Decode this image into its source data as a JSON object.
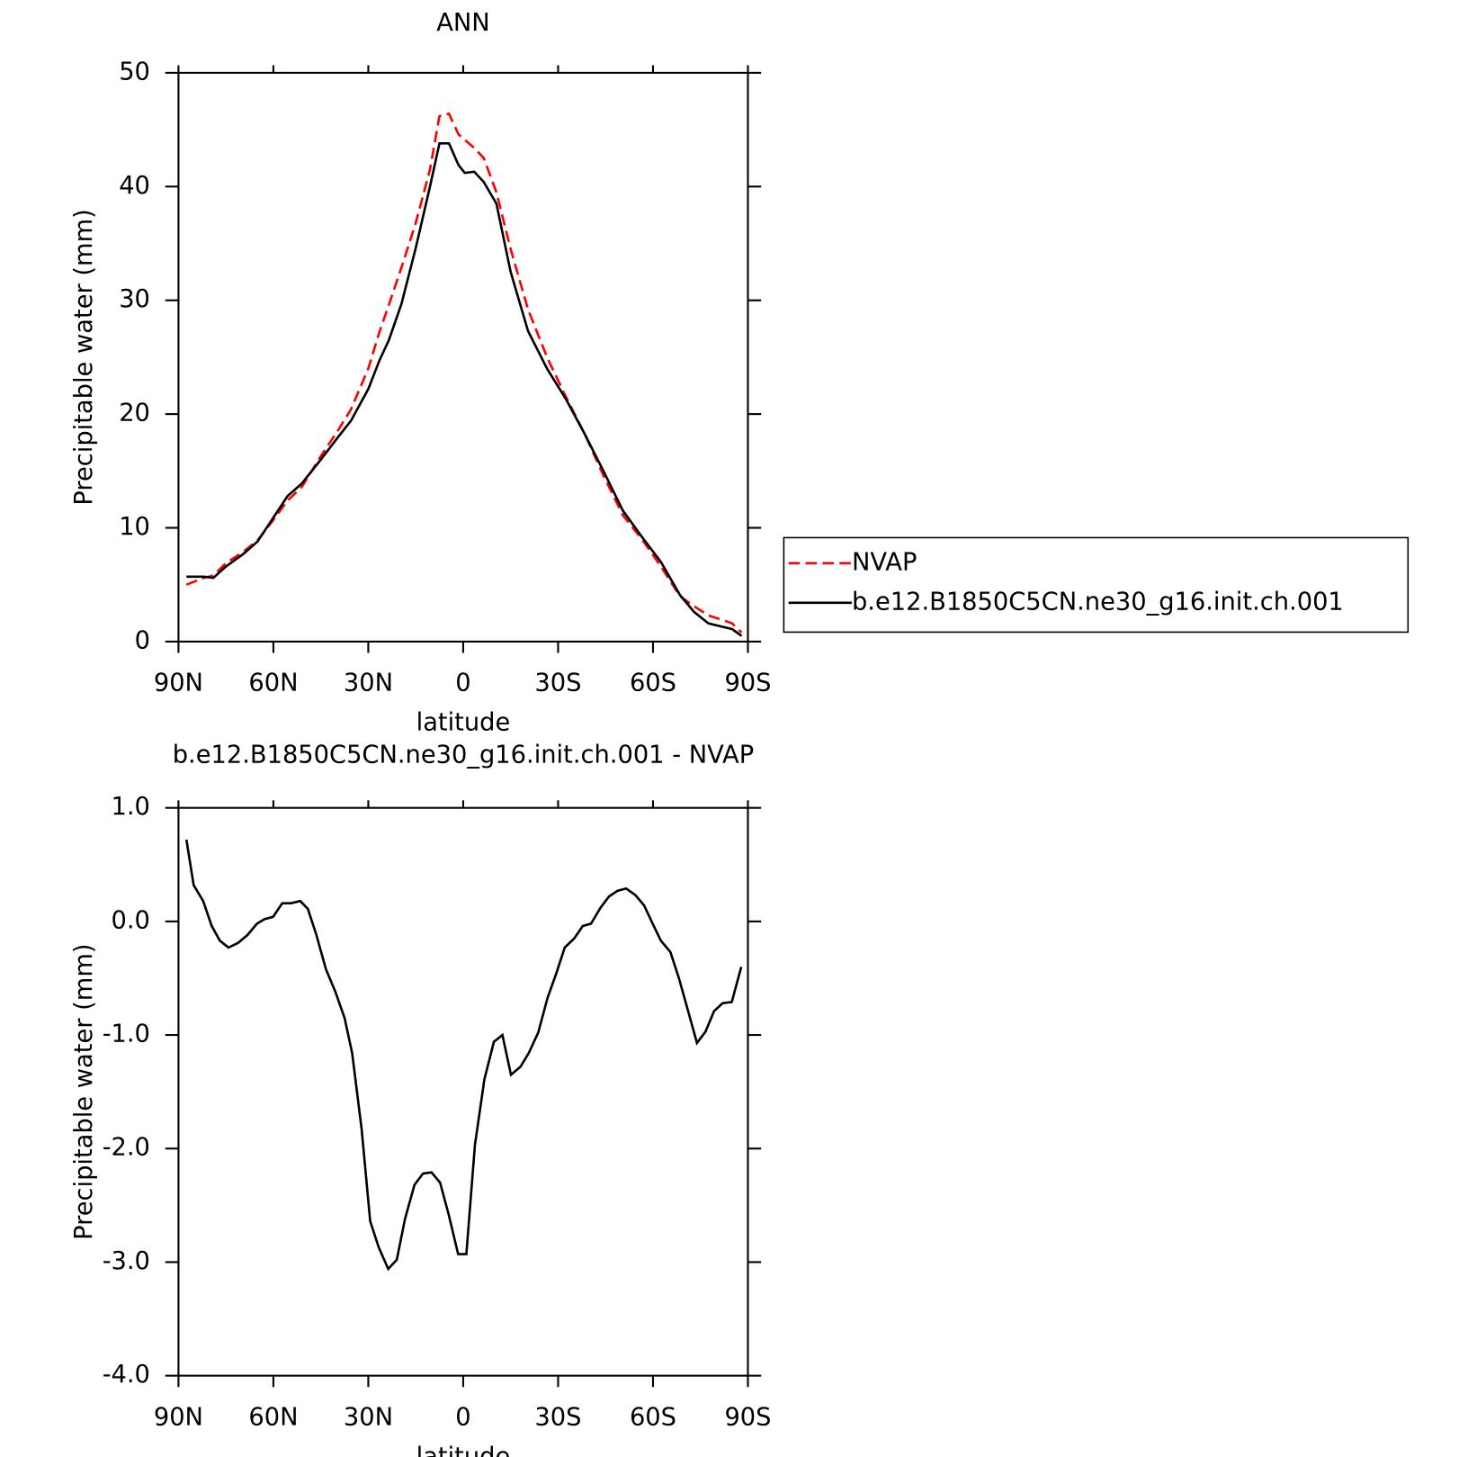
{
  "chart_data": [
    {
      "type": "line",
      "title": "ANN",
      "xlabel": "latitude",
      "ylabel": "Precipitable water (mm)",
      "x": [
        87.5,
        82,
        79,
        75,
        69.5,
        65,
        60,
        55.5,
        51,
        45,
        39.5,
        35.5,
        30,
        26.5,
        23.5,
        19.5,
        15,
        10.5,
        7.5,
        4.5,
        1.5,
        -0.5,
        -3.5,
        -6.5,
        -10.5,
        -15,
        -20.5,
        -26.5,
        -32.5,
        -38.5,
        -44.5,
        -50.5,
        -56.5,
        -62.5,
        -68.5,
        -73,
        -77.5,
        -82,
        -85,
        -88
      ],
      "series": [
        {
          "name": "NVAP",
          "color": "#ff0000",
          "dashed": true,
          "values": [
            5.0,
            5.6,
            5.8,
            6.9,
            7.9,
            8.9,
            10.7,
            12.4,
            13.6,
            16.3,
            18.6,
            20.4,
            24.0,
            27.2,
            29.6,
            32.9,
            36.8,
            41.5,
            46.2,
            46.4,
            44.6,
            44.1,
            43.4,
            42.5,
            39.5,
            34.5,
            29.2,
            25.0,
            21.5,
            18.2,
            14.5,
            11.1,
            9.0,
            6.6,
            4.0,
            3.1,
            2.3,
            1.9,
            1.6,
            0.8
          ]
        },
        {
          "name": "b.e12.B1850C5CN.ne30_g16.init.ch.001",
          "color": "#000000",
          "dashed": false,
          "values": [
            5.7,
            5.7,
            5.6,
            6.6,
            7.7,
            8.8,
            10.9,
            12.8,
            13.9,
            16.0,
            18.0,
            19.4,
            22.2,
            24.7,
            26.5,
            29.7,
            34.6,
            40.0,
            43.8,
            43.8,
            41.9,
            41.2,
            41.3,
            40.4,
            38.5,
            32.5,
            27.3,
            24.0,
            21.3,
            18.2,
            14.9,
            11.5,
            9.2,
            7.0,
            4.1,
            2.6,
            1.6,
            1.3,
            1.1,
            0.5
          ]
        }
      ],
      "xlim": [
        90,
        -90
      ],
      "xticks": [
        {
          "value": 90,
          "label": "90N"
        },
        {
          "value": 60,
          "label": "60N"
        },
        {
          "value": 30,
          "label": "30N"
        },
        0,
        {
          "value": -30,
          "label": "30S"
        },
        {
          "value": -60,
          "label": "60S"
        },
        {
          "value": -90,
          "label": "90S"
        }
      ],
      "ylim": [
        0,
        50
      ],
      "yticks": [
        0,
        10,
        20,
        30,
        40,
        50
      ],
      "grid": false,
      "legend": "right"
    },
    {
      "type": "line",
      "title": "b.e12.B1850C5CN.ne30_g16.init.ch.001  -  NVAP",
      "xlabel": "latitude",
      "ylabel": "Precipitable water (mm)",
      "x": [
        87.5,
        85.2,
        82.2,
        79.5,
        76.9,
        74.2,
        71.2,
        68.2,
        65.2,
        62.8,
        60.1,
        57.2,
        54.5,
        51.5,
        49.1,
        46.4,
        43.4,
        40.4,
        37.5,
        35.1,
        32.1,
        29.4,
        26.7,
        23.7,
        21.0,
        18.4,
        15.4,
        12.7,
        10.0,
        7.3,
        4.6,
        1.6,
        -1.0,
        -3.7,
        -6.7,
        -9.7,
        -12.4,
        -15.1,
        -18.1,
        -20.7,
        -23.7,
        -26.7,
        -29.4,
        -32.1,
        -35.1,
        -37.8,
        -40.4,
        -43.4,
        -46.1,
        -48.8,
        -51.5,
        -54.5,
        -57.2,
        -59.9,
        -62.5,
        -65.5,
        -68.2,
        -70.9,
        -73.9,
        -76.6,
        -79.3,
        -82.0,
        -84.9,
        -87.9
      ],
      "values": [
        0.72,
        0.32,
        0.18,
        -0.04,
        -0.17,
        -0.23,
        -0.19,
        -0.12,
        -0.02,
        0.02,
        0.04,
        0.16,
        0.16,
        0.18,
        0.11,
        -0.12,
        -0.42,
        -0.62,
        -0.85,
        -1.16,
        -1.83,
        -2.64,
        -2.87,
        -3.06,
        -2.98,
        -2.62,
        -2.32,
        -2.22,
        -2.21,
        -2.3,
        -2.58,
        -2.93,
        -2.93,
        -1.97,
        -1.39,
        -1.06,
        -1.0,
        -1.35,
        -1.28,
        -1.16,
        -0.98,
        -0.67,
        -0.46,
        -0.23,
        -0.15,
        -0.04,
        -0.02,
        0.12,
        0.22,
        0.27,
        0.29,
        0.23,
        0.14,
        -0.02,
        -0.17,
        -0.27,
        -0.5,
        -0.77,
        -1.07,
        -0.97,
        -0.79,
        -0.72,
        -0.71,
        -0.4
      ],
      "color": "#000000",
      "xlim": [
        90,
        -90
      ],
      "xticks": [
        {
          "value": 90,
          "label": "90N"
        },
        {
          "value": 60,
          "label": "60N"
        },
        {
          "value": 30,
          "label": "30N"
        },
        0,
        {
          "value": -30,
          "label": "30S"
        },
        {
          "value": -60,
          "label": "60S"
        },
        {
          "value": -90,
          "label": "90S"
        }
      ],
      "ylim": [
        -4,
        1
      ],
      "yticks": [
        {
          "value": -4,
          "label": "-4.0"
        },
        {
          "value": -3,
          "label": "-3.0"
        },
        {
          "value": -2,
          "label": "-2.0"
        },
        {
          "value": -1,
          "label": "-1.0"
        },
        {
          "value": 0,
          "label": "0.0"
        },
        {
          "value": 1,
          "label": "1.0"
        }
      ],
      "grid": false
    }
  ]
}
